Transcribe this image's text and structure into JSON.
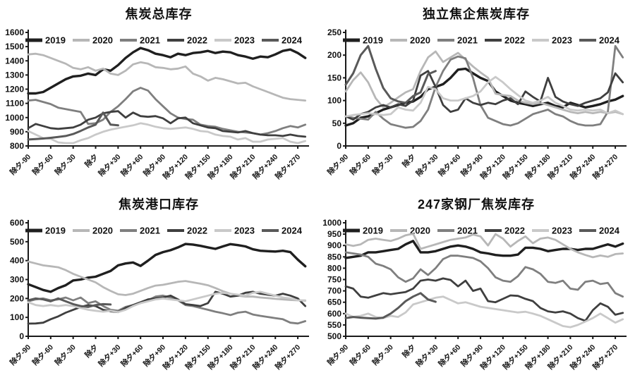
{
  "page": {
    "background": "#ffffff"
  },
  "x_axis": {
    "tick_labels": [
      "除夕-90",
      "除夕-60",
      "除夕-30",
      "除夕",
      "除夕+30",
      "除夕+60",
      "除夕+90",
      "除夕+120",
      "除夕+150",
      "除夕+180",
      "除夕+210",
      "除夕+240",
      "除夕+270"
    ],
    "tick_values": [
      -90,
      -60,
      -30,
      0,
      30,
      60,
      90,
      120,
      150,
      180,
      210,
      240,
      270
    ],
    "xlim": [
      -90,
      285
    ]
  },
  "chart_data": [
    {
      "type": "line",
      "id": "coke-total-inventory",
      "title": "焦炭总库存",
      "ylim": [
        800,
        1600
      ],
      "y_tick_step": 100,
      "grid": false,
      "legend_position": "top-inside",
      "series": [
        {
          "name": "2019",
          "color": "#1f1f1f",
          "width": 3.4,
          "x_start": -90,
          "x_step": 10,
          "values": [
            1170,
            1170,
            1180,
            1210,
            1240,
            1270,
            1290,
            1295,
            1310,
            1300,
            1340,
            1330,
            1370,
            1420,
            1460,
            1490,
            1475,
            1450,
            1440,
            1425,
            1450,
            1440,
            1455,
            1460,
            1470,
            1455,
            1465,
            1460,
            1440,
            1430,
            1415,
            1430,
            1425,
            1445,
            1470,
            1480,
            1455,
            1420
          ]
        },
        {
          "name": "2020",
          "color": "#b7b7b7",
          "width": 2.8,
          "x_start": -90,
          "x_step": 10,
          "values": [
            1445,
            1450,
            1440,
            1420,
            1400,
            1380,
            1350,
            1340,
            1355,
            1330,
            1345,
            1310,
            1300,
            1330,
            1375,
            1390,
            1380,
            1355,
            1350,
            1340,
            1345,
            1360,
            1310,
            1290,
            1260,
            1280,
            1270,
            1255,
            1240,
            1245,
            1220,
            1200,
            1180,
            1160,
            1140,
            1130,
            1125,
            1120
          ]
        },
        {
          "name": "2021",
          "color": "#7f7f7f",
          "width": 2.8,
          "x_start": -90,
          "x_step": 10,
          "values": [
            1120,
            1125,
            1110,
            1095,
            1070,
            1060,
            1050,
            1040,
            955,
            960,
            985,
            1040,
            1080,
            1130,
            1185,
            1210,
            1190,
            1130,
            1080,
            1030,
            1000,
            990,
            985,
            950,
            940,
            935,
            920,
            910,
            900,
            895,
            890,
            880,
            890,
            905,
            925,
            940,
            930,
            950
          ]
        },
        {
          "name": "2022",
          "color": "#3f3f3f",
          "width": 2.8,
          "x_start": -90,
          "x_step": 10,
          "values": [
            925,
            955,
            940,
            925,
            920,
            925,
            930,
            950,
            985,
            1000,
            1030,
            1040,
            1045,
            1000,
            1035,
            1010,
            1005,
            1010,
            995,
            960,
            995,
            1000,
            960,
            945,
            930,
            925,
            905,
            900,
            895,
            905,
            890,
            880,
            875,
            875,
            870,
            880,
            870,
            865
          ]
        },
        {
          "name": "2023",
          "color": "#c9c9c9",
          "width": 2.8,
          "x_start": -90,
          "x_step": 10,
          "values": [
            905,
            880,
            855,
            850,
            825,
            820,
            820,
            840,
            855,
            880,
            900,
            915,
            925,
            935,
            945,
            960,
            950,
            935,
            925,
            920,
            925,
            930,
            920,
            905,
            900,
            880,
            870,
            865,
            845,
            855,
            830,
            830,
            845,
            850,
            855,
            830,
            820,
            835
          ]
        },
        {
          "name": "2024",
          "color": "#595959",
          "width": 3.0,
          "x_start": -90,
          "x_step": 10,
          "values": [
            845,
            848,
            852,
            857,
            863,
            870,
            884,
            906,
            930,
            950,
            1035,
            950,
            945
          ]
        }
      ]
    },
    {
      "type": "line",
      "id": "independent-coker-coke-inventory",
      "title": "独立焦企焦炭库存",
      "ylim": [
        0,
        250
      ],
      "y_tick_step": 50,
      "grid": false,
      "legend_position": "top-inside",
      "series": [
        {
          "name": "2019",
          "color": "#1f1f1f",
          "width": 3.4,
          "x_start": -90,
          "x_step": 10,
          "values": [
            45,
            50,
            62,
            65,
            72,
            80,
            85,
            90,
            95,
            98,
            108,
            125,
            130,
            136,
            150,
            168,
            170,
            160,
            150,
            143,
            120,
            110,
            100,
            95,
            92,
            88,
            92,
            95,
            88,
            85,
            95,
            90,
            85,
            88,
            92,
            98,
            102,
            110
          ]
        },
        {
          "name": "2020",
          "color": "#b7b7b7",
          "width": 2.8,
          "x_start": -90,
          "x_step": 10,
          "values": [
            120,
            145,
            162,
            140,
            105,
            85,
            95,
            107,
            118,
            125,
            165,
            195,
            208,
            185,
            195,
            205,
            190,
            175,
            162,
            150,
            115,
            112,
            110,
            100,
            95,
            92,
            95,
            90,
            85,
            80,
            75,
            72,
            75,
            72,
            75,
            72,
            75,
            70
          ]
        },
        {
          "name": "2021",
          "color": "#7f7f7f",
          "width": 2.8,
          "x_start": -90,
          "x_step": 10,
          "values": [
            65,
            62,
            60,
            58,
            75,
            60,
            48,
            44,
            40,
            42,
            55,
            80,
            130,
            165,
            190,
            197,
            193,
            150,
            90,
            62,
            55,
            48,
            45,
            50,
            60,
            70,
            75,
            80,
            70,
            65,
            55,
            48,
            45,
            45,
            48,
            75,
            220,
            195
          ]
        },
        {
          "name": "2022",
          "color": "#3f3f3f",
          "width": 2.8,
          "x_start": -90,
          "x_step": 10,
          "values": [
            65,
            58,
            70,
            75,
            85,
            90,
            85,
            92,
            88,
            100,
            155,
            165,
            130,
            90,
            75,
            80,
            105,
            95,
            90,
            95,
            92,
            100,
            105,
            92,
            120,
            108,
            98,
            150,
            108,
            98,
            92,
            88,
            95,
            100,
            105,
            118,
            160,
            140
          ]
        },
        {
          "name": "2023",
          "color": "#c9c9c9",
          "width": 2.8,
          "x_start": -90,
          "x_step": 10,
          "values": [
            65,
            68,
            70,
            72,
            70,
            68,
            70,
            85,
            80,
            78,
            95,
            130,
            125,
            105,
            100,
            100,
            105,
            110,
            120,
            140,
            152,
            140,
            125,
            112,
            100,
            95,
            100,
            108,
            95,
            88,
            80,
            78,
            80,
            78,
            80,
            72,
            78,
            70
          ]
        },
        {
          "name": "2024",
          "color": "#595959",
          "width": 3.0,
          "x_start": -90,
          "x_step": 10,
          "values": [
            135,
            160,
            200,
            220,
            170,
            128,
            105,
            98,
            95,
            110,
            118,
            158,
            165
          ]
        }
      ]
    },
    {
      "type": "line",
      "id": "coke-port-inventory",
      "title": "焦炭港口库存",
      "ylim": [
        0,
        600
      ],
      "y_tick_step": 100,
      "grid": false,
      "legend_position": "top-inside",
      "series": [
        {
          "name": "2019",
          "color": "#1f1f1f",
          "width": 3.4,
          "x_start": -90,
          "x_step": 10,
          "values": [
            275,
            260,
            245,
            235,
            255,
            270,
            295,
            300,
            310,
            315,
            330,
            345,
            375,
            385,
            390,
            372,
            400,
            430,
            445,
            455,
            470,
            488,
            485,
            478,
            470,
            462,
            475,
            487,
            482,
            475,
            460,
            452,
            450,
            448,
            452,
            445,
            405,
            370
          ]
        },
        {
          "name": "2020",
          "color": "#b7b7b7",
          "width": 2.8,
          "x_start": -90,
          "x_step": 10,
          "values": [
            395,
            385,
            375,
            370,
            365,
            350,
            330,
            315,
            300,
            285,
            260,
            240,
            222,
            218,
            225,
            240,
            255,
            268,
            272,
            280,
            288,
            292,
            285,
            278,
            270,
            255,
            238,
            225,
            215,
            210,
            210,
            205,
            202,
            198,
            195,
            192,
            190,
            188
          ]
        },
        {
          "name": "2021",
          "color": "#7f7f7f",
          "width": 2.8,
          "x_start": -90,
          "x_step": 10,
          "values": [
            185,
            195,
            200,
            190,
            195,
            205,
            190,
            205,
            175,
            185,
            160,
            140,
            135,
            155,
            165,
            175,
            190,
            210,
            215,
            205,
            190,
            165,
            160,
            150,
            140,
            130,
            122,
            112,
            125,
            130,
            115,
            108,
            102,
            96,
            90,
            72,
            68,
            80
          ]
        },
        {
          "name": "2022",
          "color": "#3f3f3f",
          "width": 2.8,
          "x_start": -90,
          "x_step": 10,
          "values": [
            67,
            68,
            72,
            90,
            105,
            125,
            140,
            155,
            165,
            160,
            140,
            132,
            128,
            150,
            165,
            180,
            195,
            200,
            205,
            215,
            195,
            170,
            165,
            160,
            175,
            235,
            225,
            210,
            215,
            230,
            235,
            225,
            220,
            215,
            225,
            215,
            200,
            160
          ]
        },
        {
          "name": "2023",
          "color": "#c9c9c9",
          "width": 2.8,
          "x_start": -90,
          "x_step": 10,
          "values": [
            180,
            165,
            160,
            165,
            160,
            165,
            160,
            150,
            140,
            135,
            130,
            135,
            128,
            140,
            160,
            175,
            185,
            195,
            200,
            195,
            190,
            185,
            195,
            205,
            215,
            225,
            230,
            225,
            220,
            215,
            230,
            235,
            225,
            215,
            205,
            200,
            190,
            190
          ]
        },
        {
          "name": "2024",
          "color": "#595959",
          "width": 3.0,
          "x_start": -90,
          "x_step": 10,
          "values": [
            190,
            200,
            195,
            185,
            200,
            185,
            170,
            160,
            155,
            165,
            170,
            168
          ]
        }
      ]
    },
    {
      "type": "line",
      "id": "247-steel-mills-coke-inventory",
      "title": "247家钢厂焦炭库存",
      "ylim": [
        500,
        1000
      ],
      "y_tick_step": 50,
      "grid": false,
      "legend_position": "top-inside",
      "series": [
        {
          "name": "2019",
          "color": "#1f1f1f",
          "width": 3.4,
          "x_start": -90,
          "x_step": 10,
          "values": [
            845,
            850,
            855,
            870,
            870,
            875,
            880,
            885,
            905,
            920,
            870,
            870,
            875,
            885,
            895,
            900,
            895,
            885,
            870,
            865,
            858,
            855,
            855,
            860,
            890,
            890,
            885,
            875,
            880,
            885,
            885,
            880,
            885,
            885,
            895,
            905,
            895,
            908
          ]
        },
        {
          "name": "2020",
          "color": "#b7b7b7",
          "width": 2.8,
          "x_start": -90,
          "x_step": 10,
          "values": [
            905,
            898,
            905,
            925,
            930,
            925,
            920,
            930,
            945,
            952,
            885,
            895,
            905,
            915,
            925,
            930,
            935,
            948,
            940,
            900,
            950,
            930,
            895,
            920,
            940,
            910,
            930,
            935,
            925,
            905,
            885,
            870,
            858,
            848,
            856,
            850,
            862,
            865
          ]
        },
        {
          "name": "2021",
          "color": "#7f7f7f",
          "width": 2.8,
          "x_start": -90,
          "x_step": 10,
          "values": [
            870,
            865,
            860,
            850,
            820,
            810,
            795,
            760,
            740,
            755,
            795,
            770,
            800,
            840,
            855,
            855,
            850,
            845,
            830,
            800,
            760,
            745,
            740,
            765,
            805,
            795,
            775,
            740,
            735,
            745,
            710,
            705,
            740,
            745,
            730,
            735,
            690,
            675
          ]
        },
        {
          "name": "2022",
          "color": "#3f3f3f",
          "width": 2.8,
          "x_start": -90,
          "x_step": 10,
          "values": [
            720,
            710,
            675,
            670,
            680,
            690,
            685,
            690,
            695,
            710,
            745,
            750,
            745,
            755,
            748,
            720,
            745,
            700,
            710,
            655,
            650,
            665,
            680,
            678,
            665,
            655,
            625,
            610,
            605,
            610,
            600,
            580,
            568,
            615,
            645,
            630,
            595,
            603
          ]
        },
        {
          "name": "2023",
          "color": "#c9c9c9",
          "width": 2.8,
          "x_start": -90,
          "x_step": 10,
          "values": [
            600,
            585,
            590,
            600,
            585,
            580,
            590,
            585,
            605,
            640,
            650,
            660,
            670,
            675,
            660,
            645,
            650,
            640,
            630,
            625,
            620,
            615,
            610,
            605,
            608,
            600,
            590,
            575,
            560,
            545,
            540,
            550,
            565,
            580,
            600,
            580,
            560,
            575
          ]
        },
        {
          "name": "2024",
          "color": "#595959",
          "width": 3.0,
          "x_start": -90,
          "x_step": 10,
          "values": [
            580,
            585,
            582,
            580,
            578,
            582,
            600,
            625,
            655,
            675,
            690,
            662,
            652
          ]
        }
      ]
    }
  ]
}
